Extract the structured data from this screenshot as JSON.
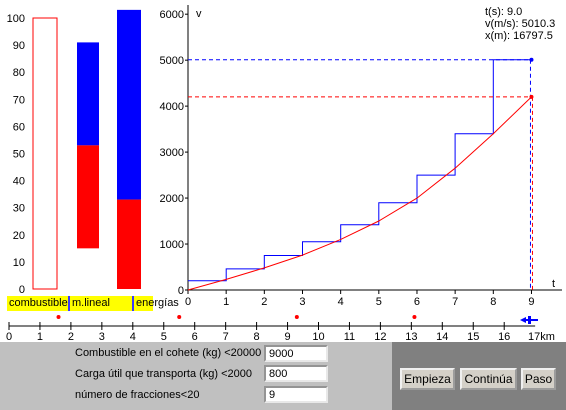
{
  "colors": {
    "accent_blue": "#0000ff",
    "accent_red": "#ff0000",
    "label_bg": "#ffff00"
  },
  "bar_chart": {
    "y_ticks": [
      "100",
      "90",
      "80",
      "70",
      "60",
      "50",
      "40",
      "30",
      "20",
      "10",
      "0"
    ],
    "labels": {
      "fuel": "combustible",
      "linear_momentum": "m.lineal",
      "energies": "energías"
    },
    "fuel_bar": {
      "outline_top": 100,
      "filled": 0
    },
    "momentum_bar": {
      "blue_top": 91,
      "red_top": 53,
      "bottom": 15
    },
    "energy_bar": {
      "blue_top": 103,
      "red_top": 33,
      "bottom": 0
    }
  },
  "chart_data": {
    "type": "line",
    "ylabel": "v",
    "xlabel": "t",
    "y_ticks": [
      "6000",
      "5000",
      "4000",
      "3000",
      "2000",
      "1000",
      "0"
    ],
    "x_ticks": [
      "0",
      "1",
      "2",
      "3",
      "4",
      "5",
      "6",
      "7",
      "8",
      "9"
    ],
    "xlim": [
      0,
      9.8
    ],
    "ylim": [
      0,
      6200
    ],
    "series": [
      {
        "color": "#0000ff",
        "kind": "staircase",
        "points": [
          [
            0,
            200
          ],
          [
            1,
            200
          ],
          [
            1,
            460
          ],
          [
            2,
            460
          ],
          [
            2,
            750
          ],
          [
            3,
            750
          ],
          [
            3,
            1050
          ],
          [
            4,
            1050
          ],
          [
            4,
            1420
          ],
          [
            5,
            1420
          ],
          [
            5,
            1900
          ],
          [
            6,
            1900
          ],
          [
            6,
            2500
          ],
          [
            7,
            2500
          ],
          [
            7,
            3400
          ],
          [
            8,
            3400
          ],
          [
            8,
            5010
          ],
          [
            9,
            5010
          ]
        ]
      },
      {
        "color": "#ff0000",
        "kind": "curve",
        "points": [
          [
            0,
            0
          ],
          [
            1,
            230
          ],
          [
            2,
            480
          ],
          [
            3,
            760
          ],
          [
            4,
            1100
          ],
          [
            5,
            1500
          ],
          [
            6,
            2000
          ],
          [
            7,
            2650
          ],
          [
            8,
            3400
          ],
          [
            9,
            4200
          ]
        ]
      }
    ],
    "markers": {
      "blue_level": 5010,
      "red_level": 4200,
      "t_current": 9.0
    }
  },
  "readout": {
    "t": "t(s): 9.0",
    "v": "v(m/s): 5010.3",
    "x": "x(m): 16797.5"
  },
  "ruler": {
    "ticks": [
      "0",
      "1",
      "2",
      "3",
      "4",
      "5",
      "6",
      "7",
      "8",
      "9",
      "10",
      "11",
      "12",
      "13",
      "14",
      "15",
      "16"
    ],
    "unit_label": "17km",
    "red_markers_km": [
      1.6,
      5.5,
      9.3,
      13.1
    ]
  },
  "form": {
    "fuel_label": "Combustible en el cohete (kg) <20000",
    "fuel_value": "9000",
    "payload_label": "Carga útil que transporta (kg) <2000",
    "payload_value": "800",
    "fractions_label": "número de fracciones<20",
    "fractions_value": "9"
  },
  "buttons": {
    "start": "Empieza",
    "continue": "Continúa",
    "step": "Paso"
  }
}
